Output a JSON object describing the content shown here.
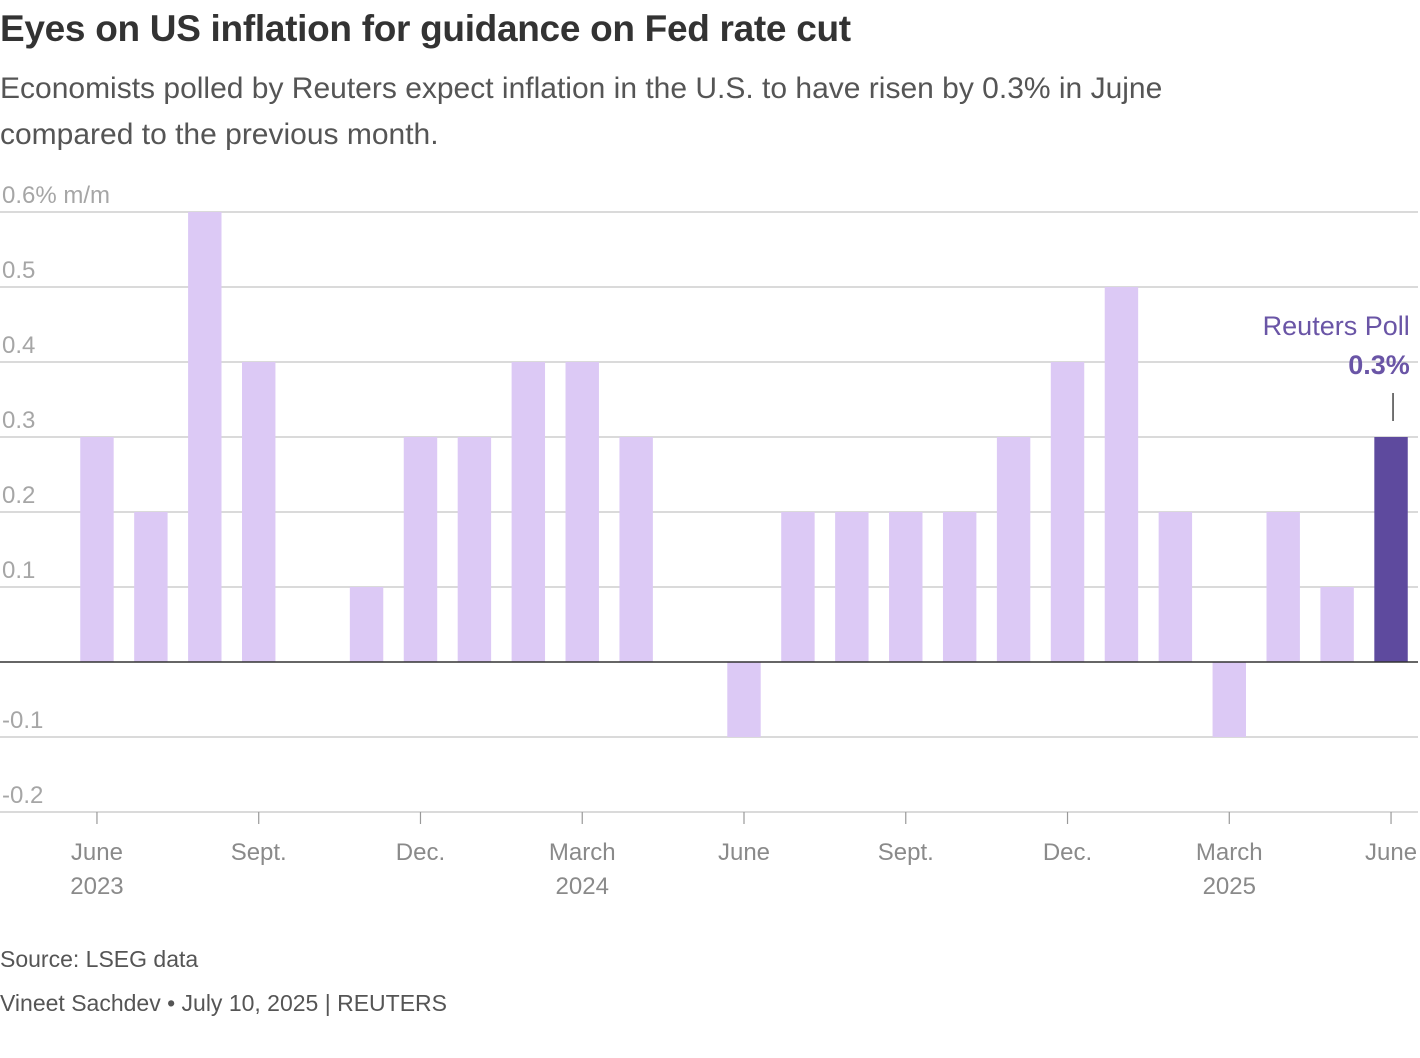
{
  "header": {
    "title": "Eyes on US inflation for guidance on Fed rate cut",
    "subtitle": "Economists polled by Reuters expect inflation in the U.S. to have risen by 0.3% in Jujne compared to the previous month."
  },
  "footer": {
    "source": "Source: LSEG data",
    "byline": "Vineet Sachdev • July 10, 2025 | REUTERS"
  },
  "colors": {
    "bar": "#dcc9f5",
    "highlight": "#5e4a9e",
    "grid": "#c4c4c4",
    "zero_line": "#333333",
    "annotation": "#6a55a6"
  },
  "chart_data": {
    "type": "bar",
    "title": "Eyes on US inflation for guidance on Fed rate cut",
    "ylabel": "% m/m",
    "ylim": [
      -0.2,
      0.6
    ],
    "yticks": [
      0.6,
      0.5,
      0.4,
      0.3,
      0.2,
      0.1,
      -0.1,
      -0.2
    ],
    "ytick_labels": [
      "0.6% m/m",
      "0.5",
      "0.4",
      "0.3",
      "0.2",
      "0.1",
      "-0.1",
      "-0.2"
    ],
    "grid": true,
    "categories": [
      "Jun 2023",
      "Jul 2023",
      "Aug 2023",
      "Sep 2023",
      "Oct 2023",
      "Nov 2023",
      "Dec 2023",
      "Jan 2024",
      "Feb 2024",
      "Mar 2024",
      "Apr 2024",
      "May 2024",
      "Jun 2024",
      "Jul 2024",
      "Aug 2024",
      "Sep 2024",
      "Oct 2024",
      "Nov 2024",
      "Dec 2024",
      "Jan 2025",
      "Feb 2025",
      "Mar 2025",
      "Apr 2025",
      "May 2025",
      "Jun 2025"
    ],
    "values": [
      0.3,
      0.2,
      0.6,
      0.4,
      0.0,
      0.1,
      0.3,
      0.3,
      0.4,
      0.4,
      0.3,
      0.0,
      -0.1,
      0.2,
      0.2,
      0.2,
      0.2,
      0.3,
      0.4,
      0.5,
      0.2,
      -0.1,
      0.2,
      0.1,
      0.3
    ],
    "highlight_index": 24,
    "xtick_labels": [
      {
        "index": 0,
        "line1": "June",
        "line2": "2023"
      },
      {
        "index": 3,
        "line1": "Sept.",
        "line2": ""
      },
      {
        "index": 6,
        "line1": "Dec.",
        "line2": ""
      },
      {
        "index": 9,
        "line1": "March",
        "line2": "2024"
      },
      {
        "index": 12,
        "line1": "June",
        "line2": ""
      },
      {
        "index": 15,
        "line1": "Sept.",
        "line2": ""
      },
      {
        "index": 18,
        "line1": "Dec.",
        "line2": ""
      },
      {
        "index": 21,
        "line1": "March",
        "line2": "2025"
      },
      {
        "index": 24,
        "line1": "June",
        "line2": ""
      }
    ],
    "annotation": {
      "index": 24,
      "label": "Reuters Poll",
      "value": "0.3%"
    }
  }
}
